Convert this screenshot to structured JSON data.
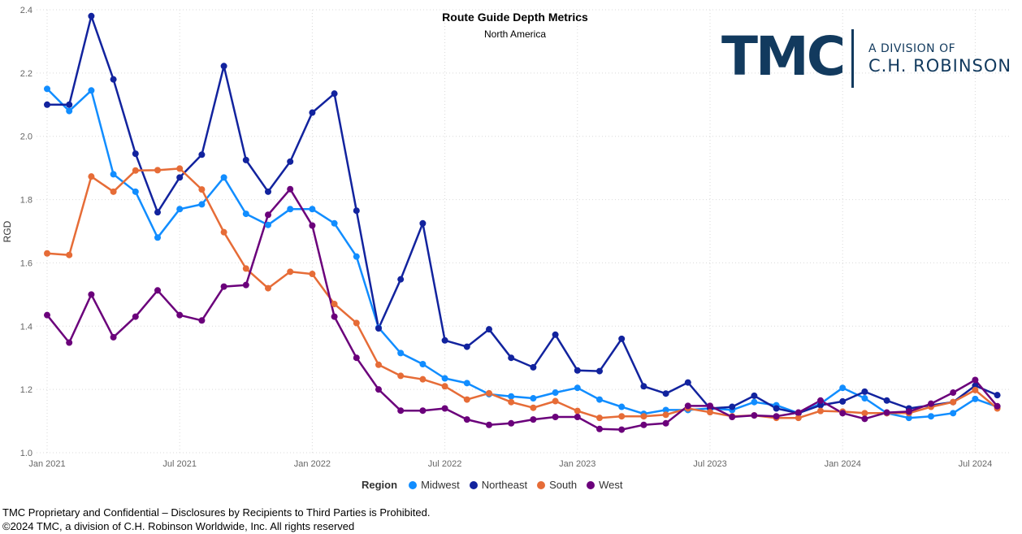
{
  "chart_data": {
    "type": "line",
    "title": "Route Guide Depth Metrics",
    "subtitle": "North America",
    "ylabel": "RGD",
    "xlabel": "",
    "ylim": [
      1.0,
      2.4
    ],
    "yticks": [
      "1.0",
      "1.2",
      "1.4",
      "1.6",
      "1.8",
      "2.0",
      "2.2",
      "2.4"
    ],
    "xtick_labels": [
      {
        "label": "Jan 2021",
        "index": 0
      },
      {
        "label": "Jul 2021",
        "index": 6
      },
      {
        "label": "Jan 2022",
        "index": 12
      },
      {
        "label": "Jul 2022",
        "index": 18
      },
      {
        "label": "Jan 2023",
        "index": 24
      },
      {
        "label": "Jul 2023",
        "index": 30
      },
      {
        "label": "Jan 2024",
        "index": 36
      },
      {
        "label": "Jul 2024",
        "index": 42
      }
    ],
    "x": [
      "2021-01",
      "2021-02",
      "2021-03",
      "2021-04",
      "2021-05",
      "2021-06",
      "2021-07",
      "2021-08",
      "2021-09",
      "2021-10",
      "2021-11",
      "2021-12",
      "2022-01",
      "2022-02",
      "2022-03",
      "2022-04",
      "2022-05",
      "2022-06",
      "2022-07",
      "2022-08",
      "2022-09",
      "2022-10",
      "2022-11",
      "2022-12",
      "2023-01",
      "2023-02",
      "2023-03",
      "2023-04",
      "2023-05",
      "2023-06",
      "2023-07",
      "2023-08",
      "2023-09",
      "2023-10",
      "2023-11",
      "2023-12",
      "2024-01",
      "2024-02",
      "2024-03",
      "2024-04",
      "2024-05",
      "2024-06",
      "2024-07",
      "2024-08"
    ],
    "grid": true,
    "legend_position": "bottom-center",
    "legend_title": "Region",
    "series": [
      {
        "name": "Midwest",
        "color": "#118dff",
        "values": [
          2.15,
          2.08,
          2.145,
          1.88,
          1.825,
          1.68,
          1.77,
          1.785,
          1.87,
          1.755,
          1.72,
          1.77,
          1.77,
          1.725,
          1.62,
          1.395,
          1.315,
          1.28,
          1.235,
          1.22,
          1.185,
          1.178,
          1.172,
          1.19,
          1.205,
          1.168,
          1.145,
          1.123,
          1.135,
          1.135,
          1.14,
          1.135,
          1.16,
          1.15,
          1.125,
          1.155,
          1.205,
          1.172,
          1.125,
          1.11,
          1.115,
          1.125,
          1.17,
          1.145
        ]
      },
      {
        "name": "Northeast",
        "color": "#12239e",
        "values": [
          2.1,
          2.1,
          2.38,
          2.18,
          1.945,
          1.76,
          1.87,
          1.942,
          2.222,
          1.925,
          1.825,
          1.92,
          2.075,
          2.135,
          1.765,
          1.393,
          1.548,
          1.725,
          1.355,
          1.335,
          1.39,
          1.3,
          1.27,
          1.373,
          1.26,
          1.258,
          1.36,
          1.21,
          1.187,
          1.222,
          1.14,
          1.145,
          1.18,
          1.14,
          1.125,
          1.15,
          1.162,
          1.193,
          1.165,
          1.14,
          1.15,
          1.16,
          1.212,
          1.182
        ]
      },
      {
        "name": "South",
        "color": "#e66c37",
        "values": [
          1.63,
          1.625,
          1.873,
          1.825,
          1.892,
          1.893,
          1.898,
          1.832,
          1.697,
          1.582,
          1.52,
          1.572,
          1.565,
          1.47,
          1.41,
          1.278,
          1.243,
          1.232,
          1.21,
          1.168,
          1.188,
          1.16,
          1.142,
          1.163,
          1.132,
          1.11,
          1.115,
          1.115,
          1.12,
          1.14,
          1.128,
          1.115,
          1.118,
          1.11,
          1.11,
          1.132,
          1.13,
          1.125,
          1.125,
          1.125,
          1.145,
          1.16,
          1.198,
          1.14
        ]
      },
      {
        "name": "West",
        "color": "#6b007b",
        "values": [
          1.435,
          1.348,
          1.5,
          1.365,
          1.43,
          1.513,
          1.435,
          1.418,
          1.525,
          1.53,
          1.752,
          1.833,
          1.718,
          1.43,
          1.3,
          1.2,
          1.133,
          1.133,
          1.14,
          1.105,
          1.088,
          1.093,
          1.105,
          1.113,
          1.113,
          1.075,
          1.073,
          1.088,
          1.093,
          1.148,
          1.148,
          1.113,
          1.118,
          1.115,
          1.127,
          1.165,
          1.125,
          1.107,
          1.127,
          1.13,
          1.155,
          1.19,
          1.23,
          1.147
        ]
      }
    ]
  },
  "logo": {
    "wordmark": "TMC",
    "line1": "A DIVISION OF",
    "line2": "C.H. ROBINSON"
  },
  "footer": {
    "line1": "TMC Proprietary and Confidential – Disclosures by Recipients to Third Parties is Prohibited.",
    "line2": "©2024 TMC, a division of C.H. Robinson Worldwide, Inc. All rights reserved"
  },
  "colors": {
    "background": "#ffffff",
    "grid": "#d9d9d9",
    "axis_text": "#666666",
    "logo": "#123a5e"
  }
}
